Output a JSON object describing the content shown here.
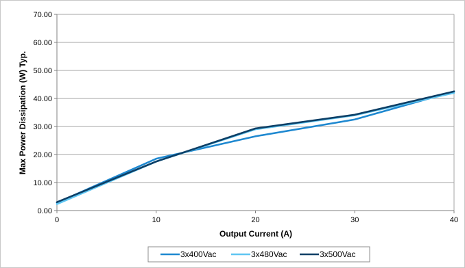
{
  "chart_data": {
    "type": "line",
    "title": "",
    "xlabel": "Output Current (A)",
    "ylabel": "Max Power Dissipation (W) Typ.",
    "xlim": [
      0,
      40
    ],
    "ylim": [
      0,
      70
    ],
    "x_ticks": [
      0,
      10,
      20,
      30,
      40
    ],
    "x_tick_labels": [
      "0",
      "10",
      "20",
      "30",
      "40"
    ],
    "y_ticks": [
      0,
      10,
      20,
      30,
      40,
      50,
      60,
      70
    ],
    "y_tick_labels": [
      "0.00",
      "10.00",
      "20.00",
      "30.00",
      "40.00",
      "50.00",
      "60.00",
      "70.00"
    ],
    "grid": "horizontal",
    "legend_position": "bottom",
    "x": [
      0,
      10,
      20,
      30,
      40
    ],
    "series": [
      {
        "name": "3x400Vac",
        "color": "#1e88d0",
        "values": [
          2.8,
          18.5,
          26.5,
          32.5,
          42.5
        ]
      },
      {
        "name": "3x480Vac",
        "color": "#5fc6f2",
        "values": [
          2.3,
          17.5,
          29.0,
          34.0,
          42.0
        ]
      },
      {
        "name": "3x500Vac",
        "color": "#0d3f66",
        "values": [
          3.0,
          17.5,
          29.3,
          34.2,
          42.5
        ]
      }
    ]
  }
}
